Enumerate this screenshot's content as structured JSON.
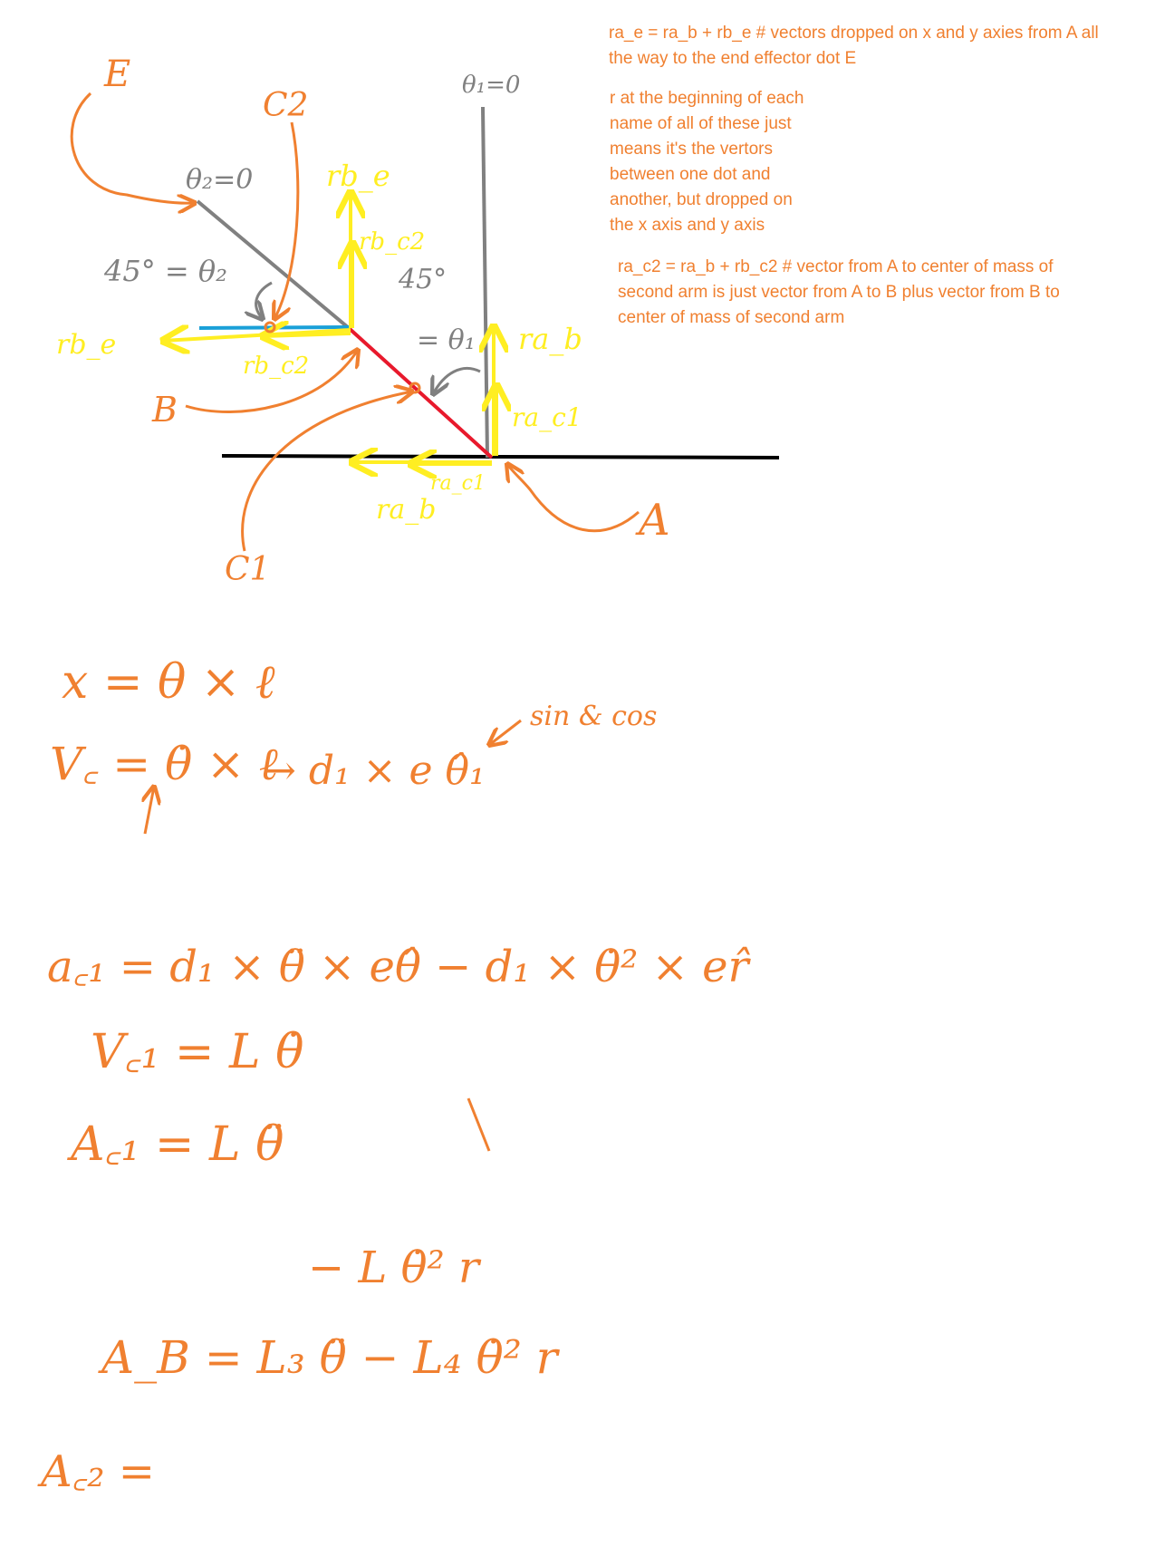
{
  "colors": {
    "orange": "#f08030",
    "yellow": "#ffee22",
    "gray": "#808080",
    "red": "#e8192c",
    "blue": "#1aa0d8",
    "black": "#000000"
  },
  "diagram": {
    "points": {
      "A": "A",
      "B": "B",
      "E": "E",
      "C1": "C1",
      "C2": "C2"
    },
    "angles": {
      "theta1_zero": "θ₁=0",
      "theta2_zero": "θ₂=0",
      "theta2_value": "45° = θ₂",
      "theta1_deg": "45°",
      "theta1_eq": "= θ₁"
    },
    "vectors": {
      "rb_e_up": "rb_e",
      "rb_c2_up": "rb_c2",
      "rb_e_left": "rb_e",
      "rb_c2_left": "rb_c2",
      "ra_b_up": "ra_b",
      "ra_c1_up": "ra_c1",
      "ra_c1_left": "ra_c1",
      "ra_b_left": "ra_b"
    }
  },
  "notes": {
    "note1": [
      "ra_e = ra_b + rb_e # vectors dropped on x and y axies from A all",
      "the way to the end effector dot E"
    ],
    "note2": [
      "r at the beginning of each",
      "name of all of these just",
      "means it's the vertors",
      "between one dot and",
      "another, but dropped on",
      "the x axis and y axis"
    ],
    "note3": [
      "ra_c2 = ra_b + rb_c2  # vector from A to center of mass of",
      "second arm is just vector from A to B plus vector from B to",
      "center of mass of second arm"
    ]
  },
  "equations": {
    "eq1": "x = θ × ℓ",
    "eq2a": "V꜀ = θ̇ × ℓ",
    "eq2b": "→ d₁ × e θ̂₁",
    "eq2c": "sin & cos",
    "eq3": "a꜀₁ = d₁ × θ̈ × eθ̂ − d₁ × θ̇² × er̂",
    "eq4": "V꜀₁ = L θ̇",
    "eq5a": "A꜀₁ = L θ̈",
    "eq5b": "− L θ̇² r",
    "eq6": "A_B = L₃ θ̈ − L₄ θ̇² r",
    "eq7": "A꜀₂ ="
  }
}
